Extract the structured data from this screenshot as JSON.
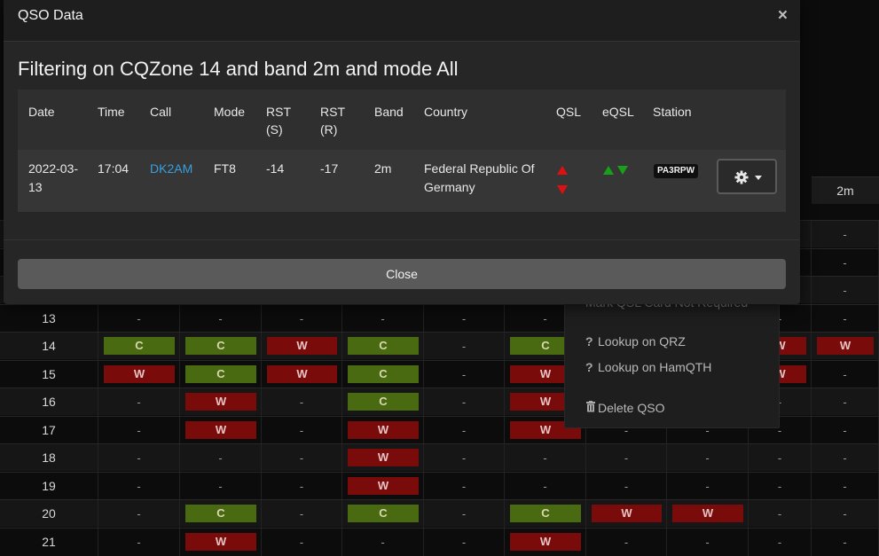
{
  "modal": {
    "title": "QSO Data",
    "close_icon": "×",
    "heading": "Filtering on CQZone 14 and band 2m and mode All",
    "close_button_label": "Close"
  },
  "table": {
    "headers": {
      "date": "Date",
      "time": "Time",
      "call": "Call",
      "mode": "Mode",
      "rst_s_line1": "RST",
      "rst_s_line2": "(S)",
      "rst_r_line1": "RST",
      "rst_r_line2": "(R)",
      "band": "Band",
      "country": "Country",
      "qsl": "QSL",
      "eqsl": "eQSL",
      "station": "Station"
    },
    "row": {
      "date_line1": "2022-03-",
      "date_line2": "13",
      "time": "17:04",
      "call": "DK2AM",
      "mode": "FT8",
      "rst_s": "-14",
      "rst_r": "-17",
      "band": "2m",
      "country_line1": "Federal Republic Of",
      "country_line2": "Germany",
      "station": "PA3RPW"
    }
  },
  "context_menu": {
    "partial_item": "Mark QSL Card Not Required",
    "lookup_qrz": "Lookup on QRZ",
    "lookup_hamqth": "Lookup on HamQTH",
    "delete_qso": "Delete QSO"
  },
  "background_grid": {
    "visible_header": "2m",
    "rows": [
      {
        "zone": "",
        "cells": [
          "-",
          "-",
          "-",
          "-",
          "-",
          "-",
          "-",
          "-",
          "-",
          "-"
        ]
      },
      {
        "zone": "",
        "cells": [
          "-",
          "-",
          "-",
          "-",
          "-",
          "-",
          "-",
          "-",
          "-",
          "-"
        ]
      },
      {
        "zone": "",
        "cells": [
          "-",
          "-",
          "-",
          "-",
          "-",
          "-",
          "-",
          "-",
          "-",
          "-"
        ]
      },
      {
        "zone": "13",
        "cells": [
          "-",
          "-",
          "-",
          "-",
          "-",
          "-",
          "",
          "",
          "-",
          "-"
        ]
      },
      {
        "zone": "14",
        "cells": [
          "C",
          "C",
          "W",
          "C",
          "-",
          "C",
          "",
          "",
          "W",
          "W"
        ]
      },
      {
        "zone": "15",
        "cells": [
          "W",
          "C",
          "W",
          "C",
          "-",
          "W",
          "",
          "",
          "W",
          "-"
        ]
      },
      {
        "zone": "16",
        "cells": [
          "-",
          "W",
          "-",
          "C",
          "-",
          "W",
          "",
          "",
          "-",
          "-"
        ]
      },
      {
        "zone": "17",
        "cells": [
          "-",
          "W",
          "-",
          "W",
          "-",
          "W",
          "-",
          "-",
          "-",
          "-"
        ]
      },
      {
        "zone": "18",
        "cells": [
          "-",
          "-",
          "-",
          "W",
          "-",
          "-",
          "-",
          "-",
          "-",
          "-"
        ]
      },
      {
        "zone": "19",
        "cells": [
          "-",
          "-",
          "-",
          "W",
          "-",
          "-",
          "-",
          "-",
          "-",
          "-"
        ]
      },
      {
        "zone": "20",
        "cells": [
          "-",
          "C",
          "-",
          "C",
          "-",
          "C",
          "W",
          "W",
          "-",
          "-"
        ]
      },
      {
        "zone": "21",
        "cells": [
          "-",
          "W",
          "-",
          "-",
          "-",
          "W",
          "-",
          "-",
          "-",
          "-"
        ]
      }
    ]
  },
  "colors": {
    "confirmed": "#4a6a12",
    "worked": "#7a0b0b",
    "link": "#3a9fdc",
    "qsl_red": "#e01010",
    "eqsl_green": "#18a018"
  },
  "icons": {
    "close": "close-icon",
    "gear": "gear-icon",
    "caret": "caret-down-icon",
    "question": "question-icon",
    "trash": "trash-icon",
    "qsl_sent": "arrow-up-red-icon",
    "qsl_received": "arrow-down-red-icon",
    "eqsl_sent": "arrow-up-green-icon",
    "eqsl_received": "arrow-down-green-icon"
  }
}
